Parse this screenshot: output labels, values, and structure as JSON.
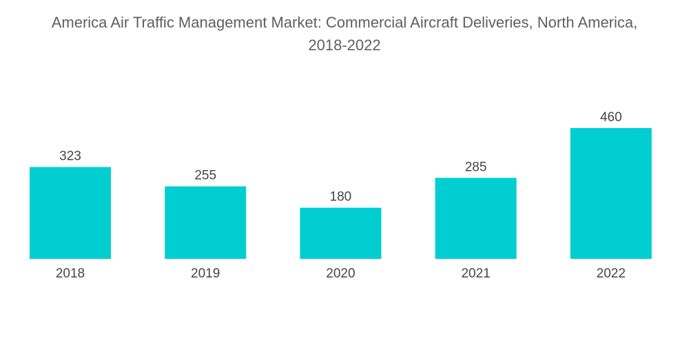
{
  "chart_data": {
    "type": "bar",
    "title_line1": "America Air Traffic Management Market: Commercial Aircraft Deliveries, North America,",
    "title_line2": "2018-2022",
    "categories": [
      "2018",
      "2019",
      "2020",
      "2021",
      "2022"
    ],
    "values": [
      323,
      255,
      180,
      285,
      460
    ],
    "xlabel": "",
    "ylabel": "",
    "ylim": [
      0,
      460
    ],
    "grid": false,
    "legend": "none",
    "bar_color": "#00CED1",
    "label_color": "#444444"
  }
}
